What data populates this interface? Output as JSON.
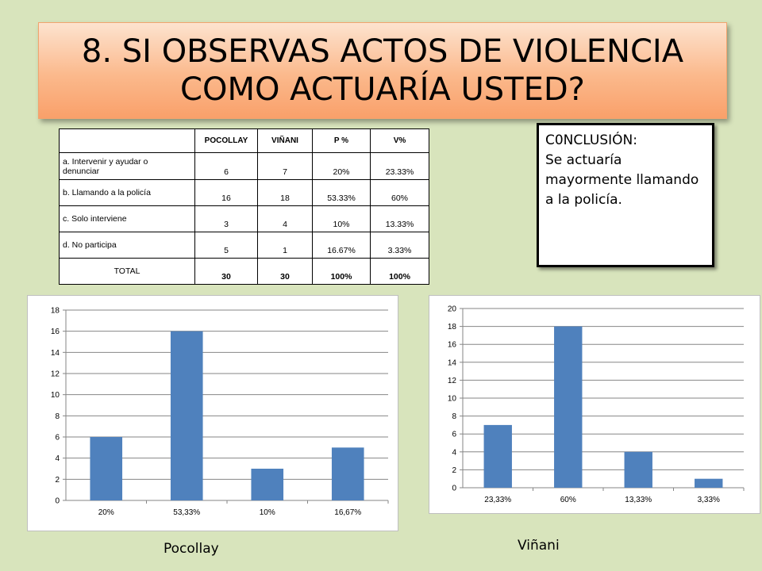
{
  "title": "8. SI OBSERVAS ACTOS DE VIOLENCIA\nCOMO ACTUARÍA USTED?",
  "table": {
    "headers": [
      "",
      "POCOLLAY",
      "VIÑANI",
      "P %",
      "V%"
    ],
    "rows": [
      {
        "label": "a.   Intervenir y ayudar o denunciar",
        "pocollay": "6",
        "vinani": "7",
        "p": "20%",
        "v": "23.33%"
      },
      {
        "label": "b.  Llamando a la policía",
        "pocollay": "16",
        "vinani": "18",
        "p": "53.33%",
        "v": "60%"
      },
      {
        "label": "c.    Solo  interviene",
        "pocollay": "3",
        "vinani": "4",
        "p": "10%",
        "v": "13.33%"
      },
      {
        "label": "d.    No participa",
        "pocollay": "5",
        "vinani": "1",
        "p": "16.67%",
        "v": "3.33%"
      }
    ],
    "total": {
      "label": "TOTAL",
      "pocollay": "30",
      "vinani": "30",
      "p": "100%",
      "v": "100%"
    }
  },
  "conclusion": {
    "heading": "C0NCLUSIÓN:",
    "text": "Se actuaría mayormente llamando a la policía."
  },
  "colors": {
    "bar": "#4f81bd",
    "background": "#d8e4bc"
  },
  "chart_data": [
    {
      "type": "bar",
      "categories": [
        "20%",
        "53,33%",
        "10%",
        "16,67%"
      ],
      "values": [
        6,
        16,
        3,
        5
      ],
      "title": "",
      "xlabel": "Pocollay",
      "ylabel": "",
      "ylim": [
        0,
        18
      ],
      "yticks": [
        0,
        2,
        4,
        6,
        8,
        10,
        12,
        14,
        16,
        18
      ],
      "grid": true
    },
    {
      "type": "bar",
      "categories": [
        "23,33%",
        "60%",
        "13,33%",
        "3,33%"
      ],
      "values": [
        7,
        18,
        4,
        1
      ],
      "title": "",
      "xlabel": "Viñani",
      "ylabel": "",
      "ylim": [
        0,
        20
      ],
      "yticks": [
        0,
        2,
        4,
        6,
        8,
        10,
        12,
        14,
        16,
        18,
        20
      ],
      "grid": true
    }
  ]
}
